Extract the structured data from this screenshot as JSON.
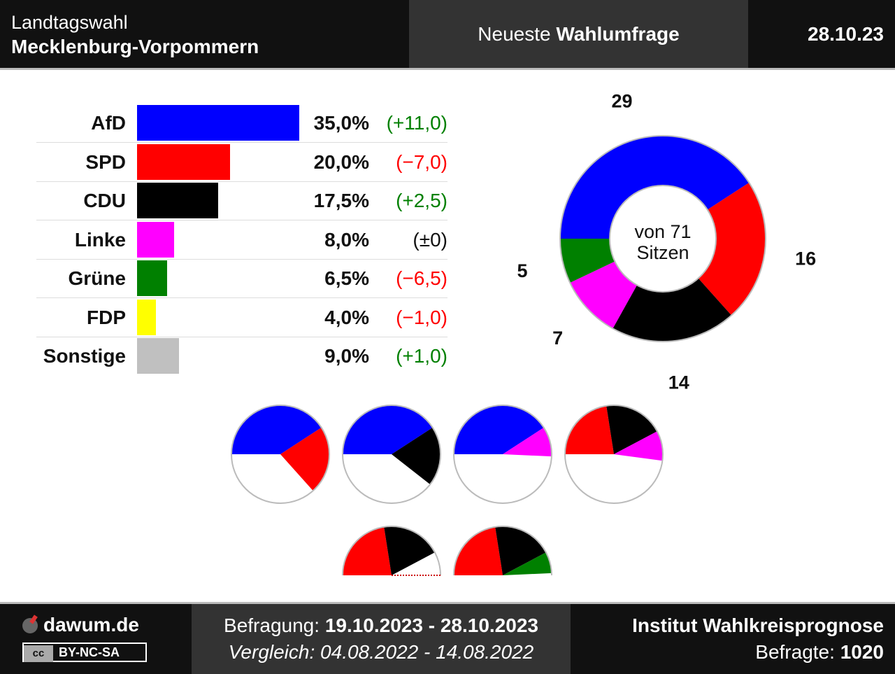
{
  "header": {
    "title_line1": "Landtagswahl",
    "title_line2": "Mecklenburg-Vorpommern",
    "middle_prefix": "Neueste",
    "middle_bold": "Wahlumfrage",
    "date": "28.10.23"
  },
  "chart_data": [
    {
      "type": "bar",
      "categories": [
        "AfD",
        "SPD",
        "CDU",
        "Linke",
        "Grüne",
        "FDP",
        "Sonstige"
      ],
      "values": [
        35.0,
        20.0,
        17.5,
        8.0,
        6.5,
        4.0,
        9.0
      ],
      "value_labels": [
        "35,0%",
        "20,0%",
        "17,5%",
        "8,0%",
        "6,5%",
        "4,0%",
        "9,0%"
      ],
      "changes": [
        "(+11,0)",
        "(−7,0)",
        "(+2,5)",
        "(±0)",
        "(−6,5)",
        "(−1,0)",
        "(+1,0)"
      ],
      "change_direction": [
        "up",
        "down",
        "up",
        "none",
        "down",
        "down",
        "up"
      ],
      "colors": [
        "#0000ff",
        "#ff0000",
        "#000000",
        "#ff00ff",
        "#008000",
        "#ffff00",
        "#c0c0c0"
      ]
    },
    {
      "type": "pie",
      "subtype": "donut",
      "center_label_line1": "von 71",
      "center_label_line2": "Sitzen",
      "total": 71,
      "slices": [
        {
          "label": "29",
          "value": 29,
          "color": "#0000ff"
        },
        {
          "label": "16",
          "value": 16,
          "color": "#ff0000"
        },
        {
          "label": "14",
          "value": 14,
          "color": "#000000"
        },
        {
          "label": "7",
          "value": 7,
          "color": "#ff00ff"
        },
        {
          "label": "5",
          "value": 5,
          "color": "#008000"
        }
      ]
    },
    {
      "type": "pie",
      "subtype": "coalitions",
      "total": 71,
      "majority": 36,
      "coalitions": [
        {
          "seats": [
            29,
            16
          ],
          "colors": [
            "#0000ff",
            "#ff0000"
          ]
        },
        {
          "seats": [
            29,
            14
          ],
          "colors": [
            "#0000ff",
            "#000000"
          ]
        },
        {
          "seats": [
            29,
            7
          ],
          "colors": [
            "#0000ff",
            "#ff00ff"
          ]
        },
        {
          "seats": [
            16,
            14,
            7
          ],
          "colors": [
            "#ff0000",
            "#000000",
            "#ff00ff"
          ]
        },
        {
          "seats": [
            16,
            14
          ],
          "colors": [
            "#ff0000",
            "#000000"
          ],
          "half": true,
          "short_of_majority": true
        },
        {
          "seats": [
            16,
            14,
            5
          ],
          "colors": [
            "#ff0000",
            "#000000",
            "#008000"
          ],
          "half": true
        }
      ]
    }
  ],
  "footer": {
    "site": "dawum.de",
    "license_cc": "cc",
    "license": "BY-NC-SA",
    "survey_label": "Befragung:",
    "survey_range": "19.10.2023 - 28.10.2023",
    "compare_label": "Vergleich:",
    "compare_range": "04.08.2022 - 14.08.2022",
    "institute": "Institut Wahlkreisprognose",
    "respondents_label": "Befragte:",
    "respondents": "1020"
  },
  "colors": {
    "up": "#008000",
    "down": "#ff0000",
    "neutral": "#111111"
  }
}
